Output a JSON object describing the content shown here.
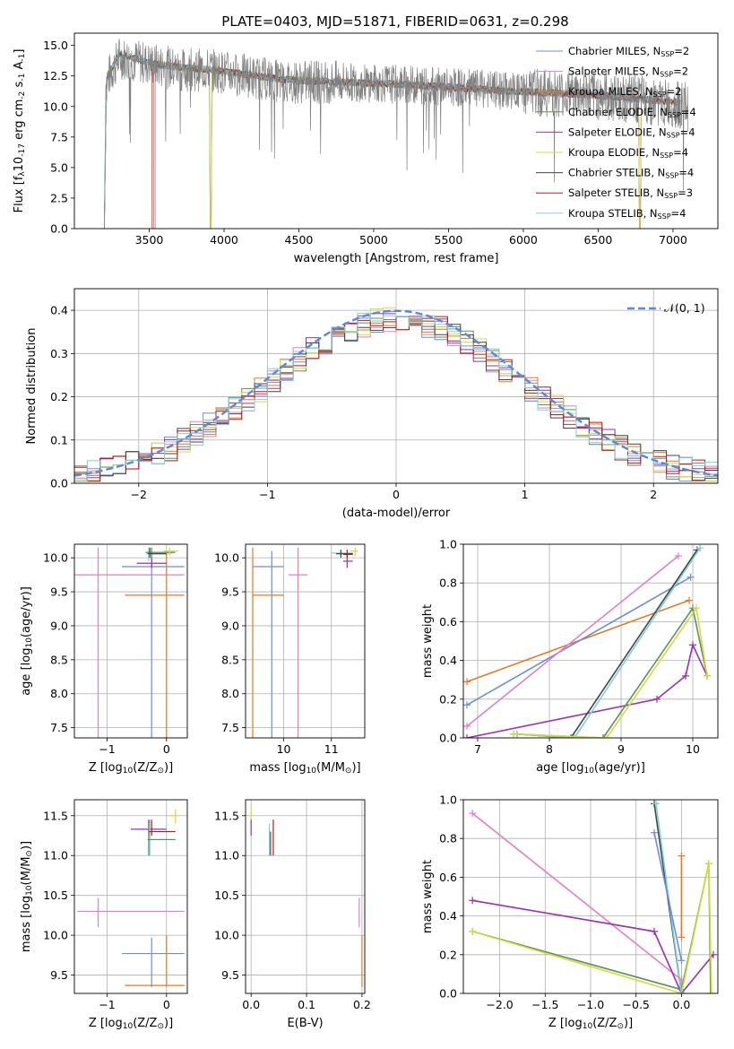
{
  "figure": {
    "title": "PLATE=0403, MJD=51871, FIBERID=0631, z=0.298"
  },
  "series_legend": [
    {
      "label": "Chabrier MILES, N",
      "sub": "SSP",
      "suffix": "=2",
      "color": "#6b8fd6"
    },
    {
      "label": "Salpeter MILES, N",
      "sub": "SSP",
      "suffix": "=2",
      "color": "#e57fbf"
    },
    {
      "label": "Kroupa MILES, N",
      "sub": "SSP",
      "suffix": "=2",
      "color": "#e8791f"
    },
    {
      "label": "Chabrier ELODIE, N",
      "sub": "SSP",
      "suffix": "=4",
      "color": "#5f8f5f"
    },
    {
      "label": "Salpeter ELODIE, N",
      "sub": "SSP",
      "suffix": "=4",
      "color": "#9a30b0"
    },
    {
      "label": "Kroupa ELODIE, N",
      "sub": "SSP",
      "suffix": "=4",
      "color": "#d4dc3c"
    },
    {
      "label": "Chabrier STELIB, N",
      "sub": "SSP",
      "suffix": "=4",
      "color": "#444444"
    },
    {
      "label": "Salpeter STELIB, N",
      "sub": "SSP",
      "suffix": "=3",
      "color": "#c01414"
    },
    {
      "label": "Kroupa STELIB, N",
      "sub": "SSP",
      "suffix": "=4",
      "color": "#7ecfd8"
    }
  ],
  "chart_data": [
    {
      "id": "spectrum",
      "type": "line",
      "xlabel": "wavelength [Angstrom, rest frame]",
      "ylabel": "Flux [f",
      "ylabel_parts": [
        "Flux [f",
        "λ",
        "10",
        "-17",
        " erg cm",
        "-2",
        " s",
        "-1",
        " A",
        "-1",
        "]"
      ],
      "xlim": [
        3000,
        7300
      ],
      "ylim": [
        0,
        16
      ],
      "xticks": [
        3500,
        4000,
        4500,
        5000,
        5500,
        6000,
        6500,
        7000
      ],
      "yticks": [
        0.0,
        2.5,
        5.0,
        7.5,
        10.0,
        12.5,
        15.0
      ],
      "grid": false,
      "legend": "top-right",
      "data_color": "#808080",
      "data_anchor_points": [
        [
          3200,
          0
        ],
        [
          3210,
          12
        ],
        [
          3300,
          14.0
        ],
        [
          3500,
          13.5
        ],
        [
          3700,
          13.0
        ],
        [
          3900,
          13.0
        ],
        [
          4100,
          12.6
        ],
        [
          4400,
          12.0
        ],
        [
          4800,
          12.0
        ],
        [
          5200,
          11.8
        ],
        [
          5600,
          11.5
        ],
        [
          6000,
          11.2
        ],
        [
          6400,
          11.0
        ],
        [
          6800,
          10.5
        ],
        [
          7100,
          10.0
        ]
      ],
      "model_anchor_points": [
        [
          3200,
          0
        ],
        [
          3215,
          12.3
        ],
        [
          3300,
          14.3
        ],
        [
          3500,
          13.6
        ],
        [
          3700,
          13.2
        ],
        [
          3900,
          13.0
        ],
        [
          4100,
          12.7
        ],
        [
          4400,
          12.2
        ],
        [
          4800,
          12.0
        ],
        [
          5200,
          11.8
        ],
        [
          5600,
          11.5
        ],
        [
          6000,
          11.2
        ],
        [
          6400,
          11.0
        ],
        [
          6800,
          10.6
        ],
        [
          7050,
          10.3
        ]
      ],
      "model_series": [
        {
          "name": "Chabrier MILES",
          "start": 3540,
          "drops": []
        },
        {
          "name": "Salpeter MILES",
          "start": 3540,
          "drops": []
        },
        {
          "name": "Kroupa MILES",
          "start": 3530,
          "drops": []
        },
        {
          "name": "Chabrier ELODIE",
          "start": 3200,
          "drops": [
            3910,
            6780
          ]
        },
        {
          "name": "Salpeter ELODIE",
          "start": 3200,
          "drops": [
            3910,
            6780
          ]
        },
        {
          "name": "Kroupa ELODIE",
          "start": 3200,
          "drops": [
            3910,
            6780
          ]
        },
        {
          "name": "Chabrier STELIB",
          "start": 3200,
          "drops": []
        },
        {
          "name": "Salpeter STELIB",
          "start": 3520,
          "drops": []
        },
        {
          "name": "Kroupa STELIB",
          "start": 3200,
          "drops": []
        }
      ]
    },
    {
      "id": "residuals",
      "type": "line",
      "xlabel": "(data-model)/error",
      "ylabel": "Normed distribution",
      "xlim": [
        -2.5,
        2.5
      ],
      "ylim": [
        0,
        0.45
      ],
      "xticks": [
        -2,
        -1,
        0,
        1,
        2
      ],
      "yticks": [
        0.0,
        0.1,
        0.2,
        0.3,
        0.4
      ],
      "grid": true,
      "legend": "top-right",
      "legend_entry": {
        "label": "𝒩(0, 1)",
        "color": "#5b8bd6"
      },
      "bin_width": 0.1,
      "reference_curve": "normal(0,1)"
    },
    {
      "id": "age_vs_Z",
      "type": "scatter",
      "xlabel": "Z [log",
      "xlabel_parts": [
        "Z [log",
        "10",
        "(Z/Z",
        "⊙",
        ")]"
      ],
      "ylabel_parts": [
        "age  [log",
        "10",
        "(age/yr)]"
      ],
      "xlim": [
        -1.55,
        0.35
      ],
      "ylim": [
        7.35,
        10.2
      ],
      "xticks": [
        -1,
        0
      ],
      "yticks": [
        7.5,
        8.0,
        8.5,
        9.0,
        9.5,
        10.0
      ],
      "grid": true,
      "points": [
        {
          "s": 1,
          "x": -1.15,
          "y": 9.75,
          "xe": [
            -1.55,
            0.3
          ],
          "ye": [
            7.2,
            10.15
          ]
        },
        {
          "s": 0,
          "x": -0.25,
          "y": 9.87,
          "xe": [
            -0.75,
            0.3
          ],
          "ye": [
            7.25,
            10.1
          ]
        },
        {
          "s": 2,
          "x": 0.0,
          "y": 9.45,
          "xe": [
            -0.7,
            0.3
          ],
          "ye": [
            7.25,
            10.1
          ]
        },
        {
          "s": 4,
          "x": -0.25,
          "y": 9.92,
          "xe": [
            -0.5,
            0.0
          ],
          "ye": [
            9.85,
            10.0
          ]
        },
        {
          "s": 8,
          "x": -0.3,
          "y": 10.07,
          "xe": [
            -0.35,
            0.1
          ],
          "ye": [
            9.95,
            10.15
          ]
        },
        {
          "s": 3,
          "x": -0.25,
          "y": 10.08,
          "xe": [
            -0.35,
            0.15
          ],
          "ye": [
            10.0,
            10.15
          ]
        },
        {
          "s": 5,
          "x": 0.05,
          "y": 10.1,
          "xe": [
            -0.05,
            0.2
          ],
          "ye": [
            10.03,
            10.15
          ]
        },
        {
          "s": 6,
          "x": -0.28,
          "y": 10.06,
          "xe": [
            -0.32,
            0.0
          ],
          "ye": [
            10.0,
            10.15
          ]
        }
      ]
    },
    {
      "id": "age_vs_mass",
      "type": "scatter",
      "xlabel_parts": [
        "mass [log",
        "10",
        "(M/M",
        "⊙",
        ")]"
      ],
      "xlim": [
        9.2,
        11.7
      ],
      "ylim": [
        7.35,
        10.2
      ],
      "xticks": [
        10,
        11
      ],
      "yticks": [
        7.5,
        8.0,
        8.5,
        9.0,
        9.5,
        10.0
      ],
      "grid": true,
      "points": [
        {
          "s": 1,
          "x": 10.3,
          "y": 9.75,
          "xe": [
            10.1,
            10.5
          ],
          "ye": [
            7.2,
            10.15
          ]
        },
        {
          "s": 0,
          "x": 9.75,
          "y": 9.87,
          "xe": [
            9.35,
            10.0
          ],
          "ye": [
            7.25,
            10.1
          ]
        },
        {
          "s": 2,
          "x": 9.35,
          "y": 9.45,
          "xe": [
            9.35,
            10.0
          ],
          "ye": [
            7.25,
            10.15
          ]
        },
        {
          "s": 4,
          "x": 11.33,
          "y": 9.95,
          "xe": [
            11.25,
            11.45
          ],
          "ye": [
            9.85,
            10.05
          ]
        },
        {
          "s": 8,
          "x": 11.2,
          "y": 10.07,
          "xe": [
            11.0,
            11.45
          ],
          "ye": [
            10.0,
            10.12
          ]
        },
        {
          "s": 7,
          "x": 11.33,
          "y": 10.05,
          "xe": [
            11.25,
            11.45
          ],
          "ye": [
            10.0,
            10.12
          ]
        },
        {
          "s": 5,
          "x": 11.5,
          "y": 10.1,
          "xe": [
            11.4,
            11.55
          ],
          "ye": [
            10.03,
            10.15
          ]
        },
        {
          "s": 6,
          "x": 11.2,
          "y": 10.06,
          "xe": [
            11.1,
            11.45
          ],
          "ye": [
            10.0,
            10.12
          ]
        }
      ]
    },
    {
      "id": "massweight_vs_age",
      "type": "line",
      "xlabel_parts": [
        "age  [log",
        "10",
        "(age/yr)]"
      ],
      "ylabel": "mass weight",
      "xlim": [
        6.8,
        10.35
      ],
      "ylim": [
        0,
        1
      ],
      "xticks": [
        7,
        8,
        9,
        10
      ],
      "yticks": [
        0.0,
        0.2,
        0.4,
        0.6,
        0.8,
        1.0
      ],
      "grid": true,
      "series": [
        {
          "s": 2,
          "x": [
            6.85,
            9.95
          ],
          "y": [
            0.29,
            0.71
          ]
        },
        {
          "s": 0,
          "x": [
            6.85,
            9.97
          ],
          "y": [
            0.17,
            0.83
          ]
        },
        {
          "s": 1,
          "x": [
            6.85,
            9.8
          ],
          "y": [
            0.06,
            0.94
          ]
        },
        {
          "s": 4,
          "x": [
            6.85,
            9.5,
            9.9,
            10.0,
            10.2
          ],
          "y": [
            0.0,
            0.2,
            0.32,
            0.48,
            0.32
          ]
        },
        {
          "s": 6,
          "x": [
            7.55,
            8.3,
            10.06
          ],
          "y": [
            0.02,
            0.0,
            0.97
          ]
        },
        {
          "s": 8,
          "x": [
            7.55,
            8.35,
            10.1
          ],
          "y": [
            0.02,
            0.0,
            0.98
          ]
        },
        {
          "s": 3,
          "x": [
            7.5,
            8.75,
            10.0,
            10.2
          ],
          "y": [
            0.02,
            0.0,
            0.67,
            0.32
          ]
        },
        {
          "s": 5,
          "x": [
            7.5,
            8.8,
            10.05,
            10.2
          ],
          "y": [
            0.02,
            0.0,
            0.67,
            0.32
          ]
        }
      ]
    },
    {
      "id": "mass_vs_Z",
      "type": "scatter",
      "xlabel_parts": [
        "Z [log",
        "10",
        "(Z/Z",
        "⊙",
        ")]"
      ],
      "ylabel_parts": [
        "mass [log",
        "10",
        "(M/M",
        "⊙",
        ")]"
      ],
      "xlim": [
        -1.55,
        0.35
      ],
      "ylim": [
        9.27,
        11.7
      ],
      "xticks": [
        -1,
        0
      ],
      "yticks": [
        9.5,
        10.0,
        10.5,
        11.0,
        11.5
      ],
      "grid": true,
      "points": [
        {
          "s": 1,
          "x": -1.15,
          "y": 10.3,
          "xe": [
            -1.5,
            0.3
          ],
          "ye": [
            10.1,
            10.47
          ]
        },
        {
          "s": 0,
          "x": -0.25,
          "y": 9.77,
          "xe": [
            -0.75,
            0.3
          ],
          "ye": [
            9.35,
            9.97
          ]
        },
        {
          "s": 2,
          "x": 0.0,
          "y": 9.37,
          "xe": [
            -0.7,
            0.3
          ],
          "ye": [
            9.35,
            10.0
          ]
        },
        {
          "s": 4,
          "x": -0.3,
          "y": 11.33,
          "xe": [
            -0.6,
            0.0
          ],
          "ye": [
            11.25,
            11.45
          ]
        },
        {
          "s": 8,
          "x": -0.28,
          "y": 11.2,
          "xe": [
            -0.3,
            0.15
          ],
          "ye": [
            11.0,
            11.45
          ]
        },
        {
          "s": 7,
          "x": -0.25,
          "y": 11.3,
          "xe": [
            -0.3,
            0.15
          ],
          "ye": [
            11.25,
            11.45
          ]
        },
        {
          "s": 5,
          "x": 0.15,
          "y": 11.5,
          "xe": [
            0.05,
            0.2
          ],
          "ye": [
            11.4,
            11.58
          ]
        },
        {
          "s": 3,
          "x": -0.3,
          "y": 11.2,
          "xe": [
            -0.32,
            0.15
          ],
          "ye": [
            11.0,
            11.4
          ]
        }
      ]
    },
    {
      "id": "mass_vs_ebv",
      "type": "scatter",
      "xlabel": "E(B-V)",
      "xlim": [
        -0.01,
        0.205
      ],
      "ylim": [
        9.27,
        11.7
      ],
      "xticks": [
        0.0,
        0.1,
        0.2
      ],
      "yticks": [
        9.5,
        10.0,
        10.5,
        11.0,
        11.5
      ],
      "grid": true,
      "points": [
        {
          "s": 5,
          "x": 0.0,
          "y": 11.5,
          "xe": [
            0.0,
            0.0
          ],
          "ye": [
            11.4,
            11.6
          ]
        },
        {
          "s": 4,
          "x": 0.0,
          "y": 11.33,
          "xe": [
            0.0,
            0.0
          ],
          "ye": [
            11.25,
            11.45
          ]
        },
        {
          "s": 6,
          "x": 0.035,
          "y": 11.15,
          "xe": [
            0.035,
            0.035
          ],
          "ye": [
            11.0,
            11.3
          ]
        },
        {
          "s": 8,
          "x": 0.033,
          "y": 11.2,
          "xe": [
            0.033,
            0.033
          ],
          "ye": [
            11.0,
            11.4
          ]
        },
        {
          "s": 7,
          "x": 0.04,
          "y": 11.3,
          "xe": [
            0.04,
            0.04
          ],
          "ye": [
            11.0,
            11.45
          ]
        },
        {
          "s": 1,
          "x": 0.195,
          "y": 10.3,
          "xe": [
            0.195,
            0.195
          ],
          "ye": [
            10.1,
            10.47
          ]
        },
        {
          "s": 2,
          "x": 0.2,
          "y": 9.6,
          "xe": [
            0.2,
            0.2
          ],
          "ye": [
            9.35,
            10.0
          ]
        }
      ]
    },
    {
      "id": "massweight_vs_Z",
      "type": "line",
      "xlabel_parts": [
        "Z [log",
        "10",
        "(Z/Z",
        "⊙",
        ")]"
      ],
      "ylabel": "mass weight",
      "xlim": [
        -2.4,
        0.4
      ],
      "ylim": [
        0,
        1
      ],
      "xticks": [
        -2.0,
        -1.5,
        -1.0,
        -0.5,
        0.0
      ],
      "yticks": [
        0.0,
        0.2,
        0.4,
        0.6,
        0.8,
        1.0
      ],
      "grid": true,
      "series": [
        {
          "s": 1,
          "x": [
            -2.3,
            0.0,
            0.0
          ],
          "y": [
            0.93,
            0.07,
            0.0
          ]
        },
        {
          "s": 4,
          "x": [
            -2.3,
            -0.3,
            0.0,
            0.35
          ],
          "y": [
            0.48,
            0.32,
            0.0,
            0.2
          ]
        },
        {
          "s": 3,
          "x": [
            -2.3,
            0.0,
            0.3,
            0.32
          ],
          "y": [
            0.32,
            0.02,
            0.67,
            0.0
          ]
        },
        {
          "s": 5,
          "x": [
            -2.3,
            0.0,
            0.3,
            0.33
          ],
          "y": [
            0.32,
            0.0,
            0.67,
            0.0
          ]
        },
        {
          "s": 6,
          "x": [
            -0.3,
            0.0
          ],
          "y": [
            0.98,
            0.0
          ]
        },
        {
          "s": 8,
          "x": [
            -0.28,
            0.0
          ],
          "y": [
            0.98,
            0.0
          ]
        },
        {
          "s": 0,
          "x": [
            -0.3,
            0.0
          ],
          "y": [
            0.83,
            0.17
          ]
        },
        {
          "s": 2,
          "x": [
            0.0,
            0.0
          ],
          "y": [
            0.71,
            0.29
          ]
        }
      ]
    }
  ]
}
